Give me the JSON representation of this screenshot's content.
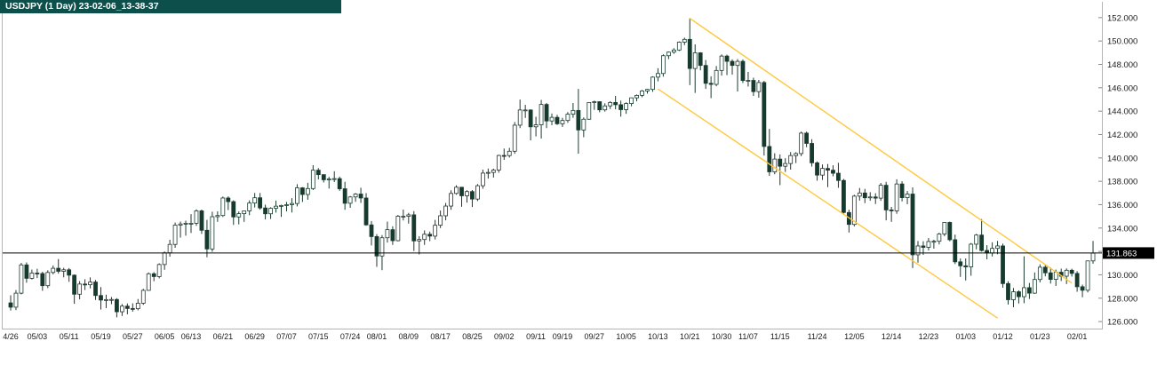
{
  "header": {
    "title": "USDJPY (1 Day) 23-02-06_13-38-37"
  },
  "chart_data": {
    "type": "candlestick",
    "symbol": "USDJPY",
    "timeframe": "1 Day",
    "snapshot_time": "23-02-06_13-38-37",
    "ylim": [
      126.0,
      152.0
    ],
    "y_tick_step": 2,
    "y_tick_labels": [
      "152.000",
      "150.000",
      "148.000",
      "146.000",
      "144.000",
      "142.000",
      "140.000",
      "138.000",
      "136.000",
      "134.000",
      "132.000",
      "130.000",
      "128.000",
      "126.000"
    ],
    "grid": false,
    "price_marker": {
      "value": 131.863,
      "label": "131.863"
    },
    "channel_lines": [
      {
        "i1": 128,
        "p1": 151.94,
        "i2": 200,
        "p2": 129.3
      },
      {
        "i1": 122,
        "p1": 145.9,
        "i2": 186,
        "p2": 126.3
      }
    ],
    "colors": {
      "up_fill": "#ffffff",
      "down_fill": "#153a2e",
      "outline": "#1c3a2e",
      "wick": "#1c3a2e",
      "channel": "#ffc83d",
      "price_line": "#000000",
      "marker_bg": "#000000",
      "marker_text": "#ffffff",
      "titlebar_bg": "#0d4f4b",
      "titlebar_text": "#ffffff",
      "axis_text": "#1a1a1a",
      "border": "#b5b5b5"
    },
    "x_ticks": [
      {
        "i": 0,
        "label": "4/26"
      },
      {
        "i": 5,
        "label": "05/03"
      },
      {
        "i": 11,
        "label": "05/11"
      },
      {
        "i": 17,
        "label": "05/19"
      },
      {
        "i": 23,
        "label": "05/27"
      },
      {
        "i": 29,
        "label": "06/05"
      },
      {
        "i": 34,
        "label": "06/13"
      },
      {
        "i": 40,
        "label": "06/21"
      },
      {
        "i": 46,
        "label": "06/29"
      },
      {
        "i": 52,
        "label": "07/07"
      },
      {
        "i": 58,
        "label": "07/15"
      },
      {
        "i": 64,
        "label": "07/24"
      },
      {
        "i": 69,
        "label": "08/01"
      },
      {
        "i": 75,
        "label": "08/09"
      },
      {
        "i": 81,
        "label": "08/17"
      },
      {
        "i": 87,
        "label": "08/25"
      },
      {
        "i": 93,
        "label": "09/02"
      },
      {
        "i": 99,
        "label": "09/11"
      },
      {
        "i": 104,
        "label": "09/19"
      },
      {
        "i": 110,
        "label": "09/27"
      },
      {
        "i": 116,
        "label": "10/05"
      },
      {
        "i": 122,
        "label": "10/13"
      },
      {
        "i": 128,
        "label": "10/21"
      },
      {
        "i": 134,
        "label": "10/30"
      },
      {
        "i": 139,
        "label": "11/07"
      },
      {
        "i": 145,
        "label": "11/15"
      },
      {
        "i": 152,
        "label": "11/24"
      },
      {
        "i": 159,
        "label": "12/05"
      },
      {
        "i": 166,
        "label": "12/14"
      },
      {
        "i": 173,
        "label": "12/23"
      },
      {
        "i": 180,
        "label": "01/03"
      },
      {
        "i": 187,
        "label": "01/12"
      },
      {
        "i": 194,
        "label": "01/23"
      },
      {
        "i": 201,
        "label": "02/01"
      }
    ],
    "candles": [
      [
        127.6,
        128.25,
        126.95,
        127.23
      ],
      [
        127.23,
        128.7,
        126.98,
        128.43
      ],
      [
        128.43,
        131.02,
        128.33,
        130.85
      ],
      [
        130.85,
        131.06,
        129.32,
        129.7
      ],
      [
        129.7,
        130.45,
        129.6,
        130.15
      ],
      [
        130.15,
        130.52,
        129.72,
        130.11
      ],
      [
        130.11,
        130.26,
        128.63,
        129.07
      ],
      [
        129.07,
        130.39,
        128.86,
        130.2
      ],
      [
        130.2,
        130.8,
        130.04,
        130.56
      ],
      [
        130.56,
        131.35,
        130.1,
        130.3
      ],
      [
        130.3,
        130.6,
        129.78,
        130.43
      ],
      [
        130.43,
        130.58,
        129.4,
        129.97
      ],
      [
        129.97,
        130.03,
        127.52,
        128.34
      ],
      [
        128.34,
        129.46,
        127.9,
        129.21
      ],
      [
        129.21,
        129.62,
        128.7,
        129.15
      ],
      [
        129.15,
        129.78,
        128.84,
        129.38
      ],
      [
        129.38,
        129.56,
        127.85,
        128.23
      ],
      [
        128.23,
        128.95,
        127.03,
        127.84
      ],
      [
        127.84,
        128.3,
        127.15,
        127.88
      ],
      [
        127.88,
        128.1,
        127.49,
        127.89
      ],
      [
        127.89,
        128.0,
        126.36,
        126.84
      ],
      [
        126.84,
        127.5,
        126.48,
        127.32
      ],
      [
        127.32,
        127.55,
        126.62,
        127.12
      ],
      [
        127.12,
        127.56,
        126.85,
        127.1
      ],
      [
        127.1,
        127.93,
        126.96,
        127.57
      ],
      [
        127.57,
        128.8,
        127.43,
        128.67
      ],
      [
        128.67,
        130.2,
        128.64,
        130.09
      ],
      [
        130.09,
        130.23,
        129.45,
        129.85
      ],
      [
        129.85,
        130.98,
        129.7,
        130.88
      ],
      [
        130.88,
        132.0,
        130.43,
        131.88
      ],
      [
        131.88,
        133.0,
        131.55,
        132.6
      ],
      [
        132.6,
        134.47,
        132.31,
        134.25
      ],
      [
        134.25,
        134.56,
        133.18,
        134.35
      ],
      [
        134.35,
        134.63,
        133.35,
        134.41
      ],
      [
        134.41,
        135.19,
        133.58,
        134.41
      ],
      [
        134.41,
        135.6,
        134.19,
        135.47
      ],
      [
        135.47,
        135.58,
        133.5,
        133.81
      ],
      [
        133.81,
        134.7,
        131.5,
        132.21
      ],
      [
        132.21,
        135.4,
        131.97,
        134.97
      ],
      [
        134.97,
        135.43,
        134.53,
        135.07
      ],
      [
        135.07,
        136.7,
        134.95,
        136.57
      ],
      [
        136.57,
        136.71,
        135.54,
        136.26
      ],
      [
        136.26,
        136.37,
        134.27,
        134.95
      ],
      [
        134.95,
        135.42,
        134.31,
        135.23
      ],
      [
        135.23,
        135.5,
        134.53,
        135.47
      ],
      [
        135.47,
        136.37,
        135.1,
        136.14
      ],
      [
        136.14,
        137.0,
        135.76,
        136.59
      ],
      [
        136.59,
        137.0,
        135.57,
        135.72
      ],
      [
        135.72,
        136.0,
        134.74,
        135.22
      ],
      [
        135.22,
        135.78,
        134.78,
        135.69
      ],
      [
        135.69,
        136.35,
        135.32,
        135.87
      ],
      [
        135.87,
        136.0,
        134.95,
        135.93
      ],
      [
        135.93,
        136.23,
        135.43,
        136.0
      ],
      [
        136.0,
        136.56,
        135.33,
        136.1
      ],
      [
        136.1,
        137.75,
        135.85,
        137.44
      ],
      [
        137.44,
        137.5,
        136.23,
        136.87
      ],
      [
        136.87,
        137.87,
        136.42,
        137.38
      ],
      [
        137.38,
        139.38,
        137.25,
        138.95
      ],
      [
        138.95,
        139.13,
        138.16,
        138.57
      ],
      [
        138.57,
        138.58,
        137.9,
        138.13
      ],
      [
        138.13,
        138.38,
        137.38,
        138.2
      ],
      [
        138.2,
        138.86,
        137.93,
        138.23
      ],
      [
        138.23,
        138.4,
        137.19,
        137.36
      ],
      [
        137.36,
        137.96,
        135.56,
        136.12
      ],
      [
        136.12,
        136.74,
        135.73,
        136.66
      ],
      [
        136.66,
        137.0,
        136.24,
        136.91
      ],
      [
        136.91,
        137.45,
        136.15,
        136.57
      ],
      [
        136.57,
        136.99,
        134.2,
        134.27
      ],
      [
        134.27,
        134.6,
        132.51,
        133.27
      ],
      [
        133.27,
        133.48,
        130.68,
        131.61
      ],
      [
        131.61,
        133.4,
        130.4,
        133.17
      ],
      [
        133.17,
        134.55,
        132.76,
        133.86
      ],
      [
        133.86,
        134.15,
        132.56,
        132.92
      ],
      [
        132.92,
        135.12,
        132.86,
        135.01
      ],
      [
        135.01,
        135.58,
        134.65,
        135.01
      ],
      [
        135.01,
        135.3,
        134.38,
        135.13
      ],
      [
        135.13,
        135.45,
        132.04,
        132.9
      ],
      [
        132.9,
        133.3,
        131.74,
        133.02
      ],
      [
        133.02,
        133.8,
        132.56,
        133.47
      ],
      [
        133.47,
        133.7,
        132.88,
        133.31
      ],
      [
        133.31,
        134.7,
        133.02,
        134.24
      ],
      [
        134.24,
        135.5,
        134.0,
        135.05
      ],
      [
        135.05,
        136.15,
        134.66,
        135.88
      ],
      [
        135.88,
        137.23,
        135.56,
        136.96
      ],
      [
        136.96,
        137.66,
        136.85,
        137.49
      ],
      [
        137.49,
        137.52,
        135.82,
        136.76
      ],
      [
        136.76,
        137.24,
        136.17,
        137.12
      ],
      [
        137.12,
        137.25,
        135.8,
        136.48
      ],
      [
        136.48,
        137.76,
        136.31,
        137.62
      ],
      [
        137.62,
        139.0,
        137.36,
        138.7
      ],
      [
        138.7,
        139.09,
        138.23,
        138.76
      ],
      [
        138.76,
        139.08,
        138.32,
        138.96
      ],
      [
        138.96,
        140.27,
        138.74,
        140.21
      ],
      [
        140.21,
        140.8,
        139.83,
        140.2
      ],
      [
        140.2,
        140.86,
        140.03,
        140.57
      ],
      [
        140.57,
        143.07,
        140.35,
        142.8
      ],
      [
        142.8,
        144.99,
        142.55,
        144.1
      ],
      [
        144.1,
        144.54,
        143.42,
        144.1
      ],
      [
        144.1,
        144.15,
        141.5,
        142.66
      ],
      [
        142.66,
        143.52,
        141.84,
        142.83
      ],
      [
        142.83,
        144.96,
        141.66,
        144.57
      ],
      [
        144.57,
        144.7,
        142.55,
        143.16
      ],
      [
        143.16,
        143.8,
        142.8,
        143.47
      ],
      [
        143.47,
        143.69,
        142.82,
        142.92
      ],
      [
        142.92,
        143.43,
        142.65,
        143.2
      ],
      [
        143.2,
        143.92,
        143.0,
        143.74
      ],
      [
        143.74,
        144.7,
        143.43,
        144.06
      ],
      [
        144.06,
        145.9,
        140.36,
        142.39
      ],
      [
        142.39,
        143.46,
        141.77,
        143.31
      ],
      [
        143.31,
        144.75,
        143.26,
        144.74
      ],
      [
        144.74,
        144.9,
        144.11,
        144.81
      ],
      [
        144.81,
        144.85,
        143.9,
        144.11
      ],
      [
        144.11,
        144.67,
        143.96,
        144.45
      ],
      [
        144.45,
        144.85,
        144.18,
        144.74
      ],
      [
        144.74,
        145.3,
        144.16,
        144.55
      ],
      [
        144.55,
        144.9,
        143.53,
        144.13
      ],
      [
        144.13,
        144.75,
        143.77,
        144.65
      ],
      [
        144.65,
        145.16,
        144.42,
        145.14
      ],
      [
        145.14,
        145.43,
        144.84,
        145.35
      ],
      [
        145.35,
        145.82,
        145.19,
        145.73
      ],
      [
        145.73,
        145.9,
        145.5,
        145.86
      ],
      [
        145.86,
        146.98,
        145.65,
        146.91
      ],
      [
        146.91,
        147.67,
        146.55,
        147.22
      ],
      [
        147.22,
        148.86,
        146.95,
        148.74
      ],
      [
        148.74,
        149.1,
        148.45,
        149.05
      ],
      [
        149.05,
        149.39,
        148.9,
        149.23
      ],
      [
        149.23,
        149.97,
        149.14,
        149.9
      ],
      [
        149.9,
        150.29,
        149.65,
        150.14
      ],
      [
        150.14,
        151.94,
        146.23,
        147.65
      ],
      [
        147.65,
        149.71,
        145.56,
        148.99
      ],
      [
        148.99,
        149.04,
        147.49,
        147.91
      ],
      [
        147.91,
        148.38,
        145.9,
        146.38
      ],
      [
        146.38,
        146.98,
        145.11,
        146.29
      ],
      [
        146.29,
        147.86,
        146.13,
        147.48
      ],
      [
        147.48,
        148.85,
        147.04,
        148.71
      ],
      [
        148.71,
        148.83,
        147.08,
        148.26
      ],
      [
        148.26,
        148.43,
        147.12,
        147.91
      ],
      [
        147.91,
        148.45,
        145.68,
        148.26
      ],
      [
        148.26,
        148.42,
        146.41,
        146.62
      ],
      [
        146.62,
        147.36,
        146.1,
        146.63
      ],
      [
        146.63,
        146.86,
        145.3,
        145.67
      ],
      [
        145.67,
        146.67,
        145.15,
        146.45
      ],
      [
        146.45,
        146.59,
        140.2,
        140.98
      ],
      [
        140.98,
        142.48,
        138.46,
        138.81
      ],
      [
        138.81,
        140.4,
        138.6,
        139.9
      ],
      [
        139.9,
        140.3,
        137.67,
        139.29
      ],
      [
        139.29,
        139.98,
        138.8,
        139.52
      ],
      [
        139.52,
        140.5,
        139.0,
        140.2
      ],
      [
        140.2,
        140.49,
        139.56,
        140.37
      ],
      [
        140.37,
        142.25,
        140.15,
        142.12
      ],
      [
        142.12,
        142.25,
        140.92,
        141.24
      ],
      [
        141.24,
        141.6,
        139.26,
        139.58
      ],
      [
        139.58,
        139.7,
        138.05,
        138.53
      ],
      [
        138.53,
        139.44,
        138.11,
        139.1
      ],
      [
        139.1,
        139.48,
        137.5,
        138.95
      ],
      [
        138.95,
        139.37,
        138.43,
        138.69
      ],
      [
        138.69,
        139.58,
        137.44,
        138.07
      ],
      [
        138.07,
        138.2,
        135.25,
        135.33
      ],
      [
        135.33,
        135.57,
        133.62,
        134.31
      ],
      [
        134.31,
        136.85,
        134.14,
        136.73
      ],
      [
        136.73,
        137.43,
        136.35,
        137.0
      ],
      [
        137.0,
        137.35,
        136.13,
        136.59
      ],
      [
        136.59,
        137.07,
        136.33,
        136.66
      ],
      [
        136.66,
        136.98,
        136.06,
        136.56
      ],
      [
        136.56,
        137.86,
        136.33,
        137.66
      ],
      [
        137.66,
        137.95,
        134.66,
        135.55
      ],
      [
        135.55,
        135.81,
        134.53,
        135.47
      ],
      [
        135.47,
        138.17,
        135.22,
        137.77
      ],
      [
        137.77,
        138.0,
        136.28,
        136.6
      ],
      [
        136.6,
        137.17,
        136.04,
        136.91
      ],
      [
        136.91,
        137.48,
        130.58,
        131.71
      ],
      [
        131.71,
        132.89,
        131.04,
        132.47
      ],
      [
        132.47,
        132.87,
        131.71,
        132.35
      ],
      [
        132.35,
        133.15,
        132.08,
        132.85
      ],
      [
        132.85,
        133.0,
        132.24,
        132.87
      ],
      [
        132.87,
        133.6,
        132.6,
        133.49
      ],
      [
        133.49,
        134.5,
        133.3,
        134.48
      ],
      [
        134.48,
        134.55,
        132.87,
        133.0
      ],
      [
        133.0,
        133.44,
        130.92,
        131.11
      ],
      [
        131.11,
        131.4,
        129.82,
        130.77
      ],
      [
        130.77,
        131.4,
        129.52,
        130.68
      ],
      [
        130.68,
        132.72,
        129.92,
        132.62
      ],
      [
        132.62,
        133.5,
        132.18,
        133.4
      ],
      [
        133.4,
        134.77,
        131.99,
        132.08
      ],
      [
        132.08,
        132.53,
        131.32,
        131.87
      ],
      [
        131.87,
        132.78,
        131.57,
        132.26
      ],
      [
        132.26,
        132.9,
        131.76,
        132.47
      ],
      [
        132.47,
        132.67,
        128.9,
        129.25
      ],
      [
        129.25,
        129.45,
        127.46,
        127.87
      ],
      [
        127.87,
        128.87,
        127.23,
        128.55
      ],
      [
        128.55,
        128.67,
        127.55,
        128.13
      ],
      [
        128.13,
        131.58,
        127.57,
        128.9
      ],
      [
        128.9,
        129.3,
        127.93,
        128.43
      ],
      [
        128.43,
        130.2,
        128.38,
        129.6
      ],
      [
        129.6,
        130.9,
        129.35,
        130.65
      ],
      [
        130.65,
        130.88,
        129.87,
        130.17
      ],
      [
        130.17,
        130.62,
        129.25,
        129.61
      ],
      [
        129.61,
        130.45,
        129.05,
        130.22
      ],
      [
        130.22,
        130.53,
        129.47,
        129.88
      ],
      [
        129.88,
        130.55,
        129.21,
        130.39
      ],
      [
        130.39,
        130.52,
        129.85,
        130.12
      ],
      [
        130.12,
        130.31,
        128.55,
        128.98
      ],
      [
        128.98,
        129.16,
        128.08,
        128.68
      ],
      [
        128.68,
        131.2,
        128.5,
        131.19
      ],
      [
        131.19,
        132.9,
        130.95,
        131.86
      ]
    ]
  }
}
